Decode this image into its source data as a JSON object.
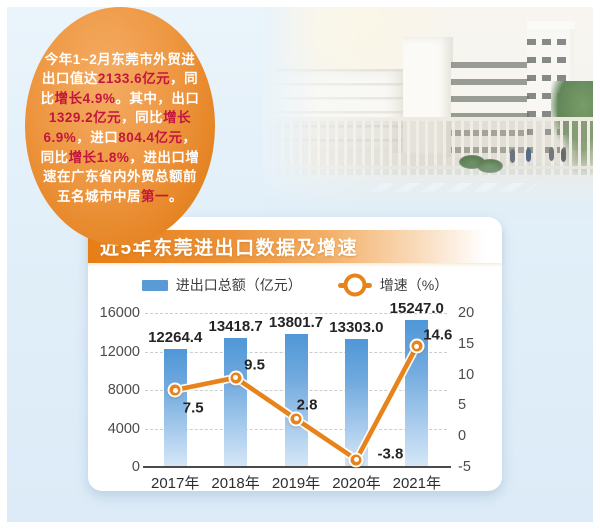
{
  "page": {
    "background_color": "#E1EFF9",
    "frame_color": "#FFFFFF"
  },
  "info_bubble": {
    "full_text": "今年1~2月东莞市外贸进出口值达2133.6亿元，同比增长4.9%。其中，出口1329.2亿元，同比增长6.9%，进口804.4亿元，同比增长1.8%，进出口增速在广东省内外贸总额前五名城市中居第一。",
    "lines": [
      [
        {
          "t": "今年1~2月东莞市外贸进",
          "hl": false
        }
      ],
      [
        {
          "t": "出口值达",
          "hl": false
        },
        {
          "t": "2133.6亿元",
          "hl": true
        },
        {
          "t": "，同",
          "hl": false
        }
      ],
      [
        {
          "t": "比",
          "hl": false
        },
        {
          "t": "增长4.9%",
          "hl": true
        },
        {
          "t": "。其中，出口",
          "hl": false
        }
      ],
      [
        {
          "t": "1329.2亿元",
          "hl": true
        },
        {
          "t": "，同比",
          "hl": false
        },
        {
          "t": "增长",
          "hl": true
        }
      ],
      [
        {
          "t": "6.9%",
          "hl": true
        },
        {
          "t": "，进口",
          "hl": false
        },
        {
          "t": "804.4亿元",
          "hl": true
        },
        {
          "t": "，",
          "hl": false
        }
      ],
      [
        {
          "t": "同比",
          "hl": false
        },
        {
          "t": "增长1.8%",
          "hl": true
        },
        {
          "t": "，进出口增",
          "hl": false
        }
      ],
      [
        {
          "t": "速在广东省内外贸总额前",
          "hl": false
        }
      ],
      [
        {
          "t": "五名城市中居",
          "hl": false
        },
        {
          "t": "第一",
          "hl": true
        },
        {
          "t": "。",
          "hl": false
        }
      ]
    ],
    "colors": {
      "background_start": "#F4AC63",
      "background_end": "#DD7916",
      "text": "#FFFFFF",
      "highlight": "#C3153F"
    }
  },
  "chart_card": {
    "title": "近5年东莞进出口数据及增速",
    "legend": [
      {
        "label": "进出口总额（亿元）",
        "swatch": "bar",
        "color": "#5B9BD5"
      },
      {
        "label": "增速（%）",
        "swatch": "line-marker",
        "color": "#E8831C"
      }
    ]
  },
  "chart_data": {
    "type": "bar+line",
    "title": "近5年东莞进出口数据及增速",
    "categories": [
      "2017年",
      "2018年",
      "2019年",
      "2020年",
      "2021年"
    ],
    "series": [
      {
        "name": "进出口总额（亿元）",
        "type": "bar",
        "axis": "left",
        "color": "#5B9BD5",
        "values": [
          12264.4,
          13418.7,
          13801.7,
          13303.0,
          15247.0
        ],
        "labels": [
          "12264.4",
          "13418.7",
          "13801.7",
          "13303.0",
          "15247.0"
        ]
      },
      {
        "name": "增速（%）",
        "type": "line",
        "axis": "right",
        "color": "#E8831C",
        "values": [
          7.5,
          9.5,
          2.8,
          -3.8,
          14.6
        ],
        "labels": [
          "7.5",
          "9.5",
          "2.8",
          "-3.8",
          "14.6"
        ]
      }
    ],
    "left_axis": {
      "min": 0,
      "max": 16000,
      "tick_values": [
        16000,
        12000,
        8000,
        4000,
        0
      ],
      "tick_labels": [
        "16000",
        "12000",
        "8000",
        "4000",
        "0"
      ]
    },
    "right_axis": {
      "min": -5,
      "max": 20,
      "tick_values": [
        20,
        15,
        10,
        5,
        0,
        -5
      ],
      "tick_labels": [
        "20",
        "15",
        "10",
        "5",
        "0",
        "-5"
      ]
    },
    "grid": {
      "horizontal_dashed_at": [
        16000,
        12000,
        8000,
        4000
      ]
    },
    "legend_position": "top-center"
  }
}
